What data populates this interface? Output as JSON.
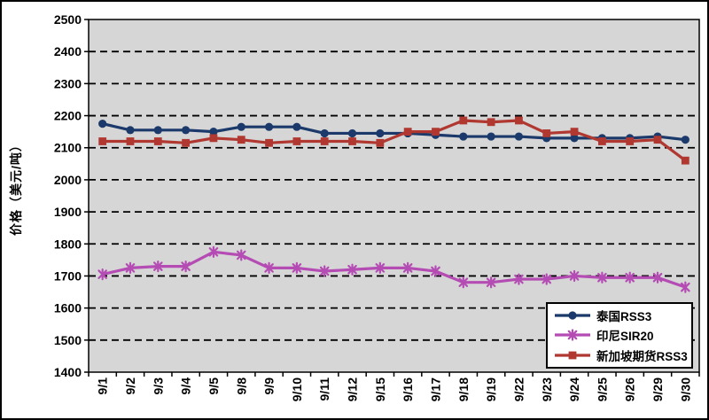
{
  "chart_data": {
    "type": "line",
    "title": "",
    "xlabel": "",
    "ylabel": "价格（美元/吨）",
    "ylim": [
      1400,
      2500
    ],
    "ytick_step": 100,
    "yticks": [
      1400,
      1500,
      1600,
      1700,
      1800,
      1900,
      2000,
      2100,
      2200,
      2300,
      2400,
      2500
    ],
    "grid": "horizontal-dashed",
    "grid_color": "#000000",
    "plot_bg": "#D6D6D6",
    "legend_position": "bottom-right-inside",
    "categories": [
      "9/1",
      "9/2",
      "9/3",
      "9/4",
      "9/5",
      "9/8",
      "9/9",
      "9/10",
      "9/11",
      "9/12",
      "9/15",
      "9/16",
      "9/17",
      "9/18",
      "9/19",
      "9/22",
      "9/23",
      "9/24",
      "9/25",
      "9/26",
      "9/29",
      "9/30"
    ],
    "series": [
      {
        "name": "泰国RSS3",
        "color": "#1B3A6B",
        "marker": "circle",
        "values": [
          2175,
          2155,
          2155,
          2155,
          2150,
          2165,
          2165,
          2165,
          2145,
          2145,
          2145,
          2145,
          2140,
          2135,
          2135,
          2135,
          2130,
          2130,
          2130,
          2130,
          2135,
          2125
        ]
      },
      {
        "name": "印尼SIR20",
        "color": "#B44CB4",
        "marker": "star",
        "values": [
          1705,
          1725,
          1730,
          1730,
          1775,
          1765,
          1725,
          1725,
          1715,
          1720,
          1725,
          1725,
          1715,
          1680,
          1680,
          1690,
          1690,
          1700,
          1695,
          1695,
          1695,
          1665
        ]
      },
      {
        "name": "新加坡期货RSS3",
        "color": "#B03830",
        "marker": "square",
        "values": [
          2120,
          2120,
          2120,
          2115,
          2130,
          2125,
          2115,
          2120,
          2120,
          2120,
          2115,
          2150,
          2150,
          2185,
          2180,
          2185,
          2145,
          2150,
          2120,
          2120,
          2125,
          2060
        ]
      }
    ]
  }
}
